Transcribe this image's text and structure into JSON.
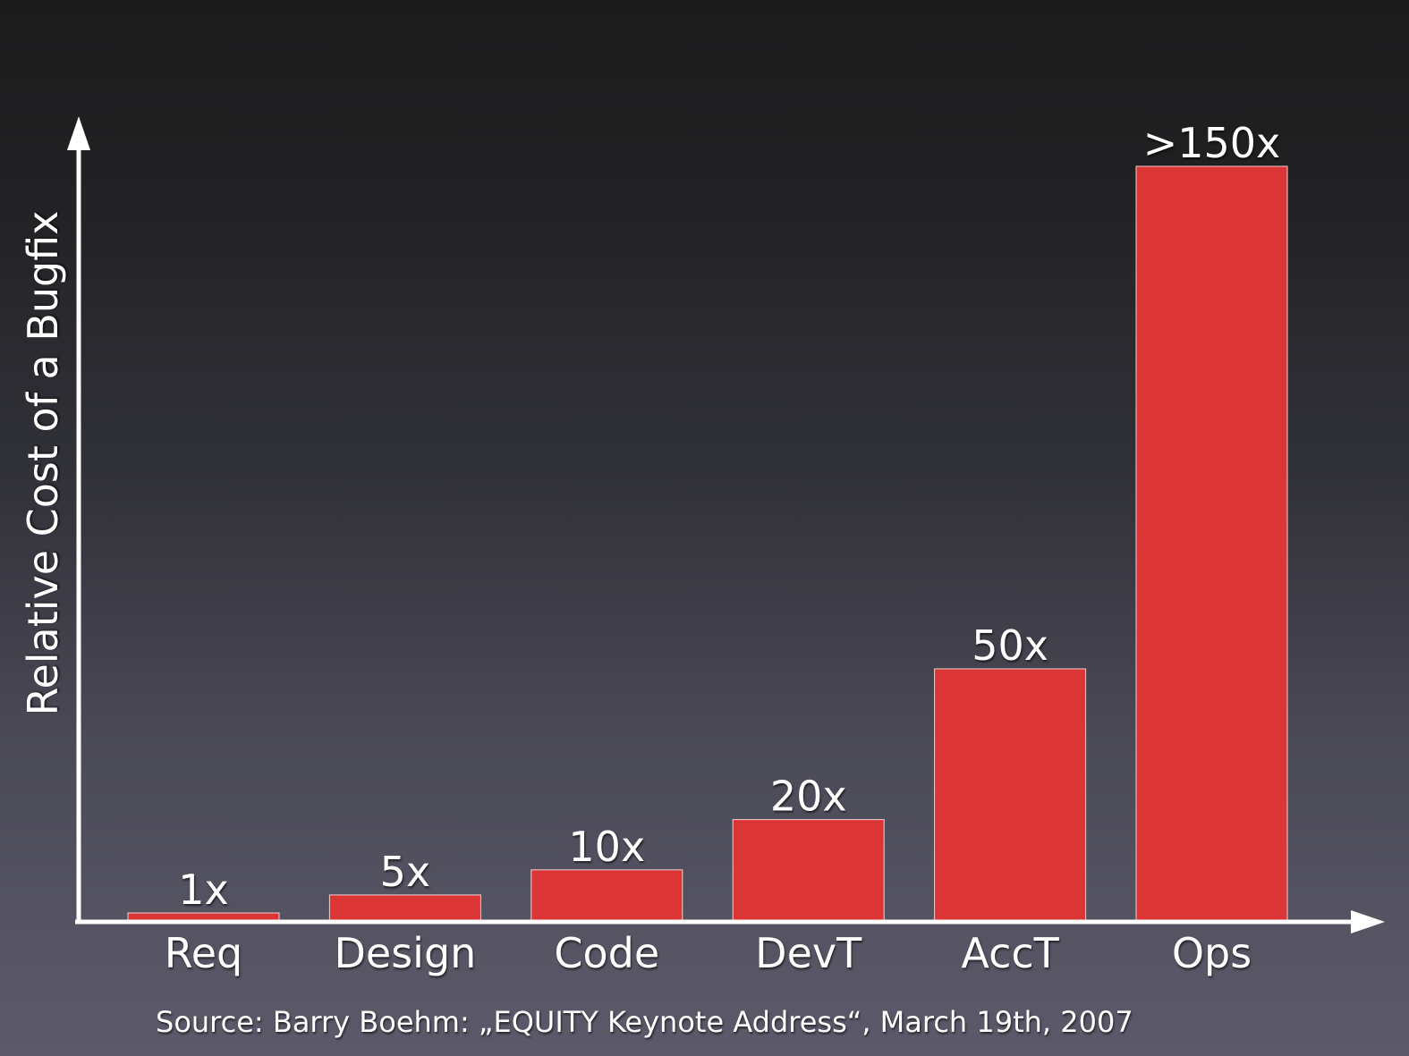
{
  "chart_data": {
    "type": "bar",
    "categories": [
      "Req",
      "Design",
      "Code",
      "DevT",
      "AccT",
      "Ops"
    ],
    "values": [
      1,
      5,
      10,
      20,
      50,
      150
    ],
    "data_labels": [
      "1x",
      "5x",
      "10x",
      "20x",
      "50x",
      ">150x"
    ],
    "ylabel": "Relative Cost of a Bugfix",
    "xlabel": "",
    "ylim": [
      0,
      158
    ],
    "grid": false,
    "bar_color": "#dc3535"
  },
  "source": "Source: Barry Boehm: „EQUITY Keynote Address“, March 19th, 2007",
  "colors": {
    "axis": "#ffffff",
    "text": "#ffffff",
    "background_top": "#1b1b1c",
    "background_bottom": "#5c5a6a"
  }
}
